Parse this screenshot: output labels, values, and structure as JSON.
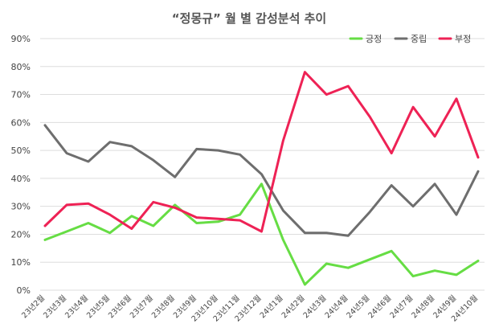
{
  "chart_data": {
    "type": "line",
    "title": "“정몽규” 월 별 감성분석 추이",
    "xlabel": "",
    "ylabel": "",
    "ylim": [
      0,
      90
    ],
    "yticks": [
      "0%",
      "10%",
      "20%",
      "30%",
      "40%",
      "50%",
      "60%",
      "70%",
      "80%",
      "90%"
    ],
    "grid": true,
    "legend_position": "top-right",
    "categories": [
      "23년2월",
      "23년3월",
      "23년4월",
      "23년5월",
      "23년6월",
      "23년7월",
      "23년8월",
      "23년9월",
      "23년10월",
      "23년11월",
      "23년12월",
      "24년1월",
      "24년2월",
      "24년3월",
      "24년4월",
      "24년5월",
      "24년6월",
      "24년7월",
      "24년8월",
      "24년9월",
      "24년10월"
    ],
    "series": [
      {
        "name": "긍정",
        "color": "#66dd44",
        "values": [
          18,
          21,
          24,
          20.5,
          26.5,
          23,
          30.5,
          24,
          24.5,
          27,
          38,
          18,
          2,
          9.5,
          8,
          11,
          14,
          5,
          7,
          5.5,
          10.5
        ]
      },
      {
        "name": "중립",
        "color": "#6e6e6e",
        "values": [
          59,
          49,
          46,
          53,
          51.5,
          46.5,
          40.5,
          50.5,
          50,
          48.5,
          41.5,
          28.5,
          20.5,
          20.5,
          19.5,
          28,
          37.5,
          30,
          38,
          27,
          42.5
        ]
      },
      {
        "name": "부정",
        "color": "#ee2255",
        "values": [
          23,
          30.5,
          31,
          27,
          22,
          31.5,
          29.5,
          26,
          25.5,
          25,
          21,
          53.5,
          78,
          70,
          73,
          62,
          49,
          65.5,
          55,
          68.5,
          47.5
        ]
      }
    ]
  }
}
